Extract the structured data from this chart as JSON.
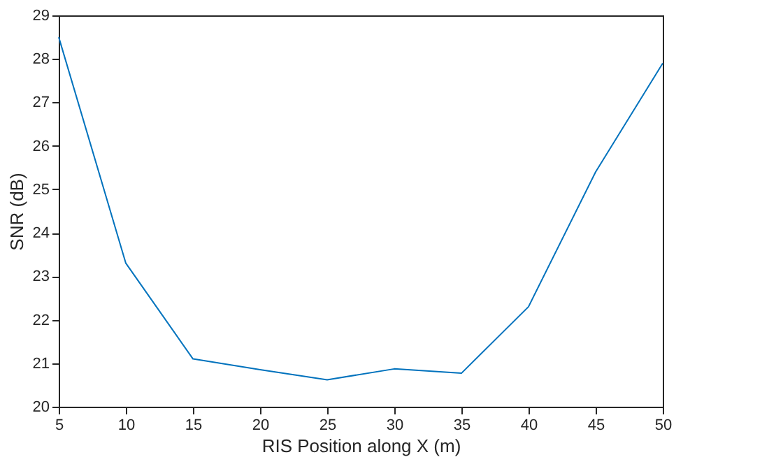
{
  "chart_data": {
    "type": "line",
    "xlabel": "RIS Position along X (m)",
    "ylabel": "SNR (dB)",
    "x": [
      5,
      10,
      15,
      20,
      25,
      30,
      35,
      40,
      45,
      50
    ],
    "series": [
      {
        "color": "#0072bd",
        "values": [
          28.5,
          23.3,
          21.1,
          20.85,
          20.62,
          20.87,
          20.77,
          22.3,
          25.4,
          27.9
        ]
      }
    ],
    "xlim": [
      5,
      50
    ],
    "xticks": [
      5,
      10,
      15,
      20,
      25,
      30,
      35,
      40,
      45,
      50
    ],
    "ylim": [
      20,
      29
    ],
    "yticks": [
      20,
      21,
      22,
      23,
      24,
      25,
      26,
      27,
      28,
      29
    ],
    "grid": false,
    "legend": false,
    "marker": "none",
    "line_style": "solid"
  }
}
